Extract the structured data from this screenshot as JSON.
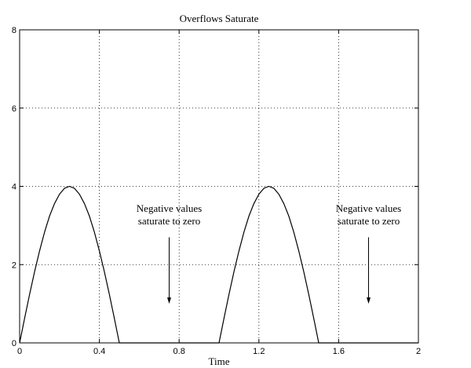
{
  "chart_data": {
    "type": "line",
    "title": "Overflows Saturate",
    "xlabel": "Time",
    "ylabel": "",
    "xlim": [
      0,
      2
    ],
    "ylim": [
      0,
      8
    ],
    "grid": true,
    "x_ticks": [
      0,
      0.4,
      0.8,
      1.2,
      1.6,
      2
    ],
    "x_tick_labels": [
      "0",
      "0.4",
      "0.8",
      "1.2",
      "1.6",
      "2"
    ],
    "y_ticks": [
      0,
      2,
      4,
      6,
      8
    ],
    "y_tick_labels": [
      "0",
      "2",
      "4",
      "6",
      "8"
    ],
    "series": [
      {
        "x": [
          0,
          0.025,
          0.05,
          0.075,
          0.1,
          0.125,
          0.15,
          0.175,
          0.2,
          0.225,
          0.25,
          0.275,
          0.3,
          0.325,
          0.35,
          0.375,
          0.4,
          0.425,
          0.45,
          0.475,
          0.5,
          0.525,
          0.55,
          0.575,
          0.6,
          0.625,
          0.65,
          0.675,
          0.7,
          0.725,
          0.75,
          0.775,
          0.8,
          0.825,
          0.85,
          0.875,
          0.9,
          0.925,
          0.95,
          0.975,
          1.0,
          1.025,
          1.05,
          1.075,
          1.1,
          1.125,
          1.15,
          1.175,
          1.2,
          1.225,
          1.25,
          1.275,
          1.3,
          1.325,
          1.35,
          1.375,
          1.4,
          1.425,
          1.45,
          1.475,
          1.5,
          1.525,
          1.55,
          1.575,
          1.6,
          1.625,
          1.65,
          1.675,
          1.7,
          1.725,
          1.75,
          1.775,
          1.8,
          1.825,
          1.85,
          1.875,
          1.9,
          1.925,
          1.95,
          1.975,
          2.0
        ],
        "y": [
          0,
          0.63,
          1.24,
          1.82,
          2.35,
          2.83,
          3.24,
          3.56,
          3.8,
          3.95,
          4.0,
          3.95,
          3.8,
          3.56,
          3.24,
          2.83,
          2.35,
          1.82,
          1.24,
          0.63,
          0,
          0,
          0,
          0,
          0,
          0,
          0,
          0,
          0,
          0,
          0,
          0,
          0,
          0,
          0,
          0,
          0,
          0,
          0,
          0,
          0,
          0.63,
          1.24,
          1.82,
          2.35,
          2.83,
          3.24,
          3.56,
          3.8,
          3.95,
          4.0,
          3.95,
          3.8,
          3.56,
          3.24,
          2.83,
          2.35,
          1.82,
          1.24,
          0.63,
          0,
          0,
          0,
          0,
          0,
          0,
          0,
          0,
          0,
          0,
          0,
          0,
          0,
          0,
          0,
          0,
          0,
          0,
          0,
          0,
          0
        ],
        "color": "#000000"
      }
    ],
    "annotations": [
      {
        "lines": [
          "Negative values",
          "saturate to zero"
        ],
        "text_x": 0.75,
        "text_y": 3.35,
        "arrow_from_y": 2.7,
        "arrow_to_y": 1.0
      },
      {
        "lines": [
          "Negative values",
          "saturate to zero"
        ],
        "text_x": 1.75,
        "text_y": 3.35,
        "arrow_from_y": 2.7,
        "arrow_to_y": 1.0
      }
    ]
  }
}
